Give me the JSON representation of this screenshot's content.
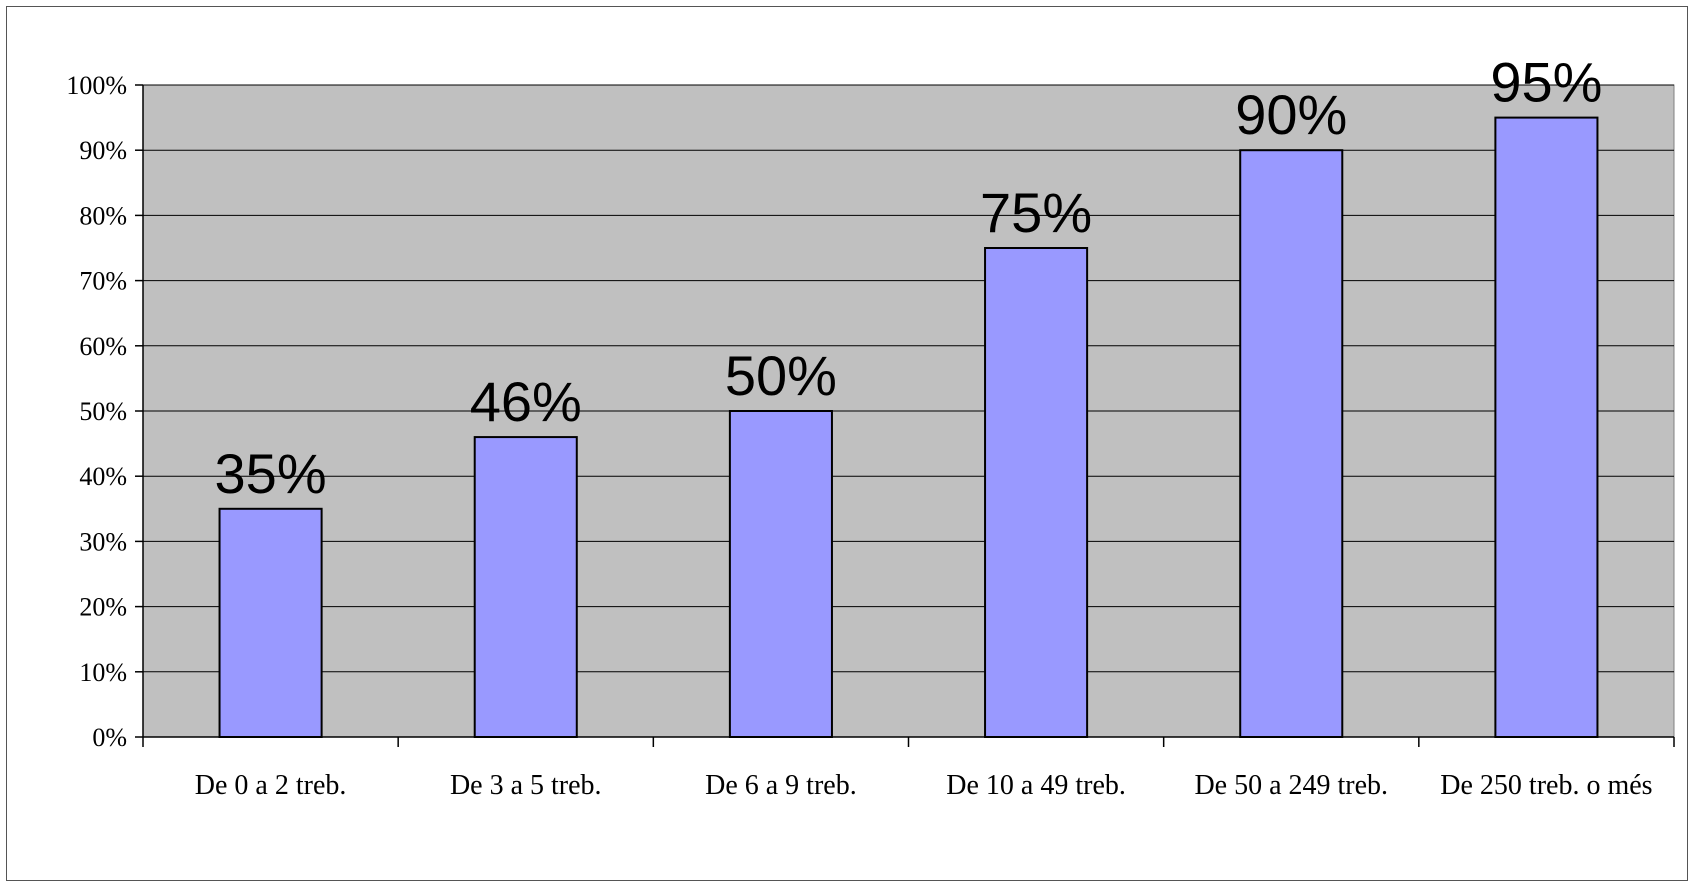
{
  "chart_data": {
    "type": "bar",
    "categories": [
      "De 0 a 2 treb.",
      "De 3 a 5 treb.",
      "De 6 a 9 treb.",
      "De 10 a 49 treb.",
      "De 50 a 249 treb.",
      "De 250 treb. o més"
    ],
    "values": [
      35,
      46,
      50,
      75,
      90,
      95
    ],
    "data_labels": [
      "35%",
      "46%",
      "50%",
      "75%",
      "90%",
      "95%"
    ],
    "ylim": [
      0,
      100
    ],
    "yticks": [
      0,
      10,
      20,
      30,
      40,
      50,
      60,
      70,
      80,
      90,
      100
    ],
    "ytick_labels": [
      "0%",
      "10%",
      "20%",
      "30%",
      "40%",
      "50%",
      "60%",
      "70%",
      "80%",
      "90%",
      "100%"
    ],
    "grid": true,
    "legend": "none",
    "title": "",
    "xlabel": "",
    "ylabel": "",
    "colors": {
      "bar_fill": "#9999ff",
      "bar_stroke": "#000000",
      "plot_background": "#c0c0c0",
      "grid": "#000000"
    }
  }
}
